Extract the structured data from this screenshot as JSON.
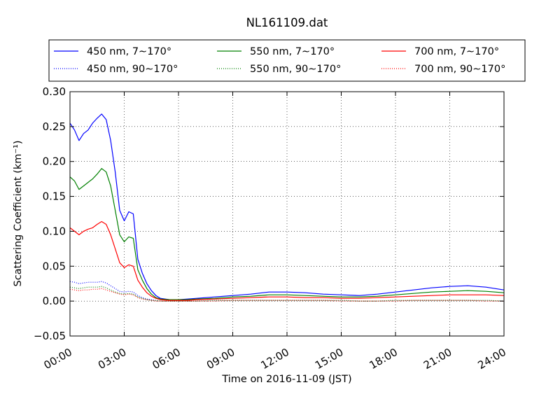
{
  "chart_data": {
    "type": "line",
    "title": "NL161109.dat",
    "xlabel": "Time on 2016-11-09 (JST)",
    "ylabel": "Scattering Coefficient (km⁻¹)",
    "x_unit": "hours",
    "xlim": [
      0,
      24
    ],
    "ylim": [
      -0.05,
      0.3
    ],
    "xticks": [
      0,
      3,
      6,
      9,
      12,
      15,
      18,
      21,
      24
    ],
    "xtick_labels": [
      "00:00",
      "03:00",
      "06:00",
      "09:00",
      "12:00",
      "15:00",
      "18:00",
      "21:00",
      "24:00"
    ],
    "yticks": [
      -0.05,
      0.0,
      0.05,
      0.1,
      0.15,
      0.2,
      0.25,
      0.3
    ],
    "ytick_labels": [
      "−0.05",
      "0.00",
      "0.05",
      "0.10",
      "0.15",
      "0.20",
      "0.25",
      "0.30"
    ],
    "grid": true,
    "legend_position": "top",
    "x": [
      0,
      0.25,
      0.5,
      0.75,
      1.0,
      1.25,
      1.5,
      1.75,
      2.0,
      2.25,
      2.5,
      2.75,
      3.0,
      3.25,
      3.5,
      3.75,
      4.0,
      4.25,
      4.5,
      4.75,
      5.0,
      5.5,
      6.0,
      6.5,
      7.0,
      8.0,
      9.0,
      10.0,
      11.0,
      12.0,
      13.0,
      14.0,
      15.0,
      16.0,
      17.0,
      18.0,
      19.0,
      20.0,
      21.0,
      22.0,
      23.0,
      24.0
    ],
    "series": [
      {
        "name": "450 nm, 7∼170°",
        "color": "#0000ff",
        "style": "solid",
        "values": [
          0.255,
          0.245,
          0.23,
          0.24,
          0.245,
          0.255,
          0.262,
          0.268,
          0.26,
          0.23,
          0.185,
          0.13,
          0.115,
          0.128,
          0.125,
          0.06,
          0.04,
          0.025,
          0.015,
          0.008,
          0.004,
          0.002,
          0.002,
          0.003,
          0.004,
          0.006,
          0.008,
          0.01,
          0.013,
          0.013,
          0.012,
          0.01,
          0.009,
          0.008,
          0.01,
          0.013,
          0.016,
          0.019,
          0.021,
          0.022,
          0.02,
          0.016
        ]
      },
      {
        "name": "450 nm, 90∼170°",
        "color": "#0000ff",
        "style": "dotted",
        "values": [
          0.028,
          0.027,
          0.025,
          0.026,
          0.027,
          0.027,
          0.027,
          0.028,
          0.026,
          0.022,
          0.018,
          0.014,
          0.013,
          0.014,
          0.013,
          0.008,
          0.005,
          0.003,
          0.002,
          0.001,
          0.0,
          0.0,
          0.0,
          0.0,
          0.0,
          0.001,
          0.001,
          0.001,
          0.001,
          0.001,
          0.001,
          0.001,
          0.001,
          0.0,
          0.0,
          0.001,
          0.001,
          0.001,
          0.001,
          0.001,
          0.001,
          0.0
        ]
      },
      {
        "name": "550 nm, 7∼170°",
        "color": "#008000",
        "style": "solid",
        "values": [
          0.178,
          0.172,
          0.16,
          0.165,
          0.17,
          0.175,
          0.182,
          0.19,
          0.185,
          0.165,
          0.13,
          0.095,
          0.085,
          0.092,
          0.09,
          0.045,
          0.03,
          0.018,
          0.01,
          0.005,
          0.003,
          0.002,
          0.002,
          0.002,
          0.003,
          0.004,
          0.006,
          0.007,
          0.009,
          0.009,
          0.008,
          0.007,
          0.006,
          0.006,
          0.007,
          0.009,
          0.011,
          0.013,
          0.014,
          0.015,
          0.014,
          0.012
        ]
      },
      {
        "name": "550 nm, 90∼170°",
        "color": "#008000",
        "style": "dotted",
        "values": [
          0.02,
          0.019,
          0.018,
          0.019,
          0.02,
          0.02,
          0.02,
          0.021,
          0.019,
          0.016,
          0.013,
          0.011,
          0.01,
          0.011,
          0.01,
          0.006,
          0.004,
          0.002,
          0.001,
          0.001,
          0.0,
          0.0,
          0.0,
          0.0,
          0.0,
          0.001,
          0.001,
          0.001,
          0.001,
          0.001,
          0.001,
          0.001,
          0.001,
          0.0,
          0.0,
          0.001,
          0.001,
          0.001,
          0.001,
          0.001,
          0.001,
          0.0
        ]
      },
      {
        "name": "700 nm, 7∼170°",
        "color": "#ff0000",
        "style": "solid",
        "values": [
          0.105,
          0.1,
          0.095,
          0.1,
          0.103,
          0.105,
          0.11,
          0.114,
          0.11,
          0.095,
          0.075,
          0.055,
          0.048,
          0.052,
          0.05,
          0.03,
          0.02,
          0.012,
          0.007,
          0.004,
          0.002,
          0.001,
          0.001,
          0.001,
          0.002,
          0.003,
          0.004,
          0.005,
          0.006,
          0.006,
          0.005,
          0.005,
          0.004,
          0.004,
          0.005,
          0.006,
          0.007,
          0.008,
          0.009,
          0.009,
          0.009,
          0.008
        ]
      },
      {
        "name": "700 nm, 90∼170°",
        "color": "#ff0000",
        "style": "dotted",
        "values": [
          0.017,
          0.016,
          0.015,
          0.016,
          0.016,
          0.017,
          0.017,
          0.018,
          0.016,
          0.014,
          0.012,
          0.01,
          0.009,
          0.01,
          0.009,
          0.005,
          0.003,
          0.002,
          0.001,
          0.0,
          0.0,
          0.0,
          0.0,
          0.0,
          0.0,
          0.0,
          0.001,
          0.001,
          0.001,
          0.001,
          0.001,
          0.001,
          0.0,
          0.0,
          0.0,
          0.0,
          0.001,
          0.001,
          0.001,
          0.001,
          0.0,
          0.0
        ]
      }
    ]
  }
}
